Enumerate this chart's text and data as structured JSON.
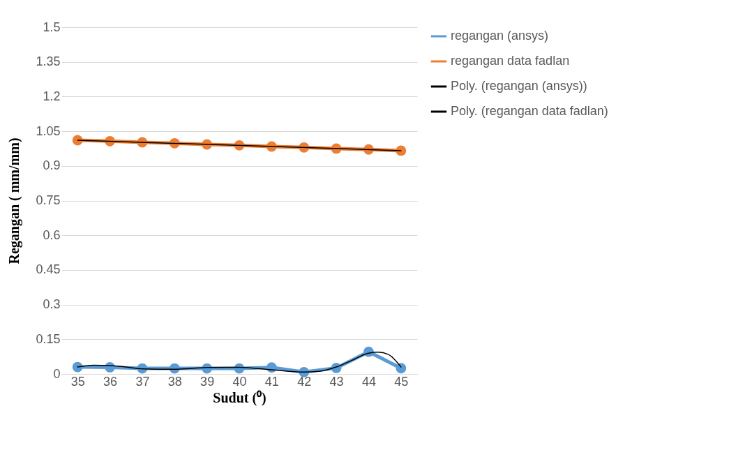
{
  "chart_data": {
    "type": "line",
    "xlabel": "Sudut (⁰)",
    "ylabel": "Regangan ( mm/mm)",
    "x": [
      35,
      36,
      37,
      38,
      39,
      40,
      41,
      42,
      43,
      44,
      45
    ],
    "xlim": [
      34.5,
      45.5
    ],
    "xticks": [
      35,
      36,
      37,
      38,
      39,
      40,
      41,
      42,
      43,
      44,
      45
    ],
    "ylim": [
      0,
      1.5
    ],
    "yticks": [
      0,
      0.15,
      0.3,
      0.45,
      0.6,
      0.75,
      0.9,
      1.05,
      1.2,
      1.35,
      1.5
    ],
    "grid": "y",
    "legend": "right",
    "series": [
      {
        "name": "regangan (ansys)",
        "color": "#5b9bd5",
        "marker": "circle",
        "values": [
          0.03,
          0.029,
          0.024,
          0.024,
          0.024,
          0.024,
          0.028,
          0.008,
          0.026,
          0.096,
          0.025
        ]
      },
      {
        "name": "regangan data fadlan",
        "color": "#ed7d31",
        "marker": "circle",
        "values": [
          1.011,
          1.007,
          1.002,
          0.998,
          0.993,
          0.989,
          0.984,
          0.98,
          0.975,
          0.971,
          0.966
        ]
      },
      {
        "name": "Poly. (regangan (ansys))",
        "color": "#000000",
        "marker": "none",
        "x": [
          35,
          35.5,
          36,
          36.5,
          37,
          38,
          39,
          40,
          41,
          42,
          42.5,
          43,
          43.5,
          44,
          44.3,
          44.6,
          45
        ],
        "values": [
          0.03,
          0.038,
          0.036,
          0.03,
          0.022,
          0.02,
          0.028,
          0.029,
          0.018,
          0.008,
          0.012,
          0.03,
          0.06,
          0.09,
          0.094,
          0.085,
          0.03
        ]
      },
      {
        "name": "Poly. (regangan data fadlan)",
        "color": "#000000",
        "marker": "none",
        "x": [
          35,
          45
        ],
        "values": [
          1.011,
          0.966
        ]
      }
    ]
  }
}
